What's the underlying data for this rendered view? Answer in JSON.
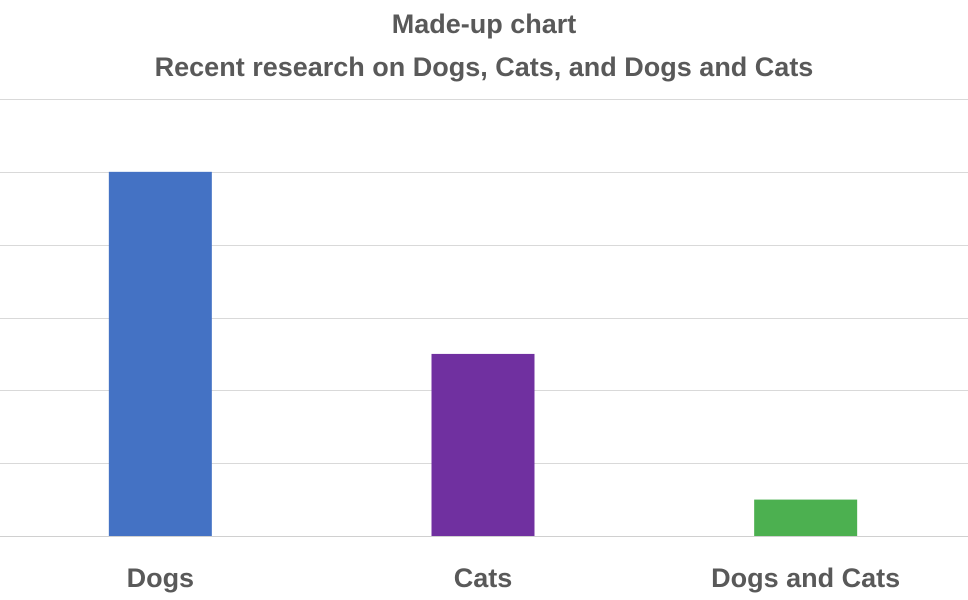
{
  "chart_data": {
    "type": "bar",
    "title_lines": [
      "Made-up chart",
      "Recent research on Dogs, Cats, and Dogs and Cats"
    ],
    "categories": [
      "Dogs",
      "Cats",
      "Dogs and Cats"
    ],
    "values": [
      5,
      2.5,
      0.5
    ],
    "bar_colors": [
      "#4472C4",
      "#7030A0",
      "#4CB050"
    ],
    "ylim": [
      0,
      6
    ],
    "ytick_step": 1,
    "grid": true,
    "legend": "none",
    "xlabel": "",
    "ylabel": ""
  }
}
